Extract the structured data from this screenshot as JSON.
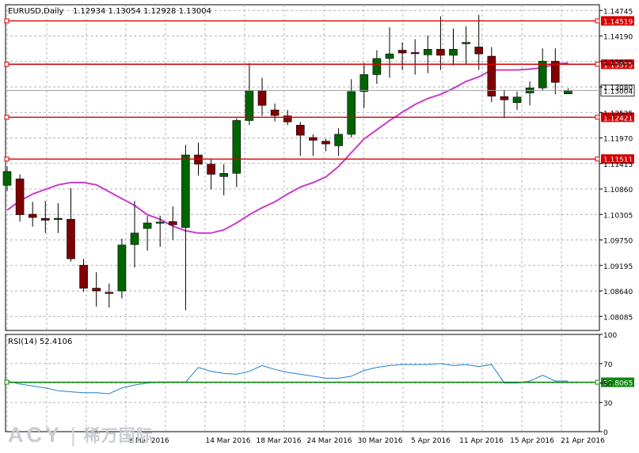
{
  "chart_data": [
    {
      "type": "candlestick",
      "title": "EURUSD,Daily",
      "ohlc_readout": "1.12934 1.13054 1.12928 1.13004",
      "ylim": [
        1.0778,
        1.1487
      ],
      "y_ticks": [
        "1.14745",
        "1.14190",
        "1.13635",
        "1.13080",
        "1.12525",
        "1.11970",
        "1.11415",
        "1.10860",
        "1.10305",
        "1.09750",
        "1.09195",
        "1.08640",
        "1.08085"
      ],
      "x_tick_labels": [
        "8 Mar 2016",
        "14 Mar 2016",
        "18 Mar 2016",
        "24 Mar 2016",
        "30 Mar 2016",
        "5 Apr 2016",
        "11 Apr 2016",
        "15 Apr 2016",
        "21 Apr 2016"
      ],
      "colors": {
        "up": "#006400",
        "down": "#800000",
        "ma": "#c83cc8",
        "levels": "#d40000",
        "grid": "#9a9a9a"
      },
      "candles": [
        {
          "o": 1.1094,
          "h": 1.1135,
          "l": 1.1082,
          "c": 1.1124
        },
        {
          "o": 1.1108,
          "h": 1.1118,
          "l": 1.1015,
          "c": 1.103
        },
        {
          "o": 1.1031,
          "h": 1.1058,
          "l": 1.1004,
          "c": 1.1024
        },
        {
          "o": 1.1022,
          "h": 1.106,
          "l": 1.099,
          "c": 1.1018
        },
        {
          "o": 1.102,
          "h": 1.1055,
          "l": 1.099,
          "c": 1.1022
        },
        {
          "o": 1.102,
          "h": 1.1088,
          "l": 1.0928,
          "c": 1.0934
        },
        {
          "o": 1.092,
          "h": 1.0934,
          "l": 1.0862,
          "c": 1.087
        },
        {
          "o": 1.087,
          "h": 1.0905,
          "l": 1.083,
          "c": 1.0864
        },
        {
          "o": 1.0861,
          "h": 1.088,
          "l": 1.0828,
          "c": 1.0859
        },
        {
          "o": 1.0864,
          "h": 1.0978,
          "l": 1.0848,
          "c": 1.0964
        },
        {
          "o": 1.0965,
          "h": 1.106,
          "l": 1.0915,
          "c": 1.099
        },
        {
          "o": 1.1,
          "h": 1.1027,
          "l": 1.0952,
          "c": 1.1012
        },
        {
          "o": 1.1012,
          "h": 1.1028,
          "l": 1.096,
          "c": 1.1014
        },
        {
          "o": 1.1015,
          "h": 1.1048,
          "l": 1.0975,
          "c": 1.1008
        },
        {
          "o": 1.1002,
          "h": 1.1182,
          "l": 1.0822,
          "c": 1.116
        },
        {
          "o": 1.116,
          "h": 1.1187,
          "l": 1.1115,
          "c": 1.114
        },
        {
          "o": 1.114,
          "h": 1.115,
          "l": 1.1085,
          "c": 1.1118
        },
        {
          "o": 1.1113,
          "h": 1.114,
          "l": 1.1072,
          "c": 1.112
        },
        {
          "o": 1.112,
          "h": 1.124,
          "l": 1.109,
          "c": 1.1235
        },
        {
          "o": 1.1235,
          "h": 1.136,
          "l": 1.1225,
          "c": 1.13
        },
        {
          "o": 1.13,
          "h": 1.1328,
          "l": 1.1245,
          "c": 1.1268
        },
        {
          "o": 1.1258,
          "h": 1.1272,
          "l": 1.1233,
          "c": 1.1246
        },
        {
          "o": 1.1245,
          "h": 1.1258,
          "l": 1.1225,
          "c": 1.1232
        },
        {
          "o": 1.1225,
          "h": 1.1232,
          "l": 1.1158,
          "c": 1.1203
        },
        {
          "o": 1.1198,
          "h": 1.1205,
          "l": 1.1158,
          "c": 1.1192
        },
        {
          "o": 1.119,
          "h": 1.1195,
          "l": 1.1168,
          "c": 1.1184
        },
        {
          "o": 1.118,
          "h": 1.1218,
          "l": 1.1158,
          "c": 1.1205
        },
        {
          "o": 1.1205,
          "h": 1.1325,
          "l": 1.1198,
          "c": 1.1298
        },
        {
          "o": 1.1298,
          "h": 1.136,
          "l": 1.1262,
          "c": 1.1335
        },
        {
          "o": 1.1335,
          "h": 1.1388,
          "l": 1.1315,
          "c": 1.137
        },
        {
          "o": 1.137,
          "h": 1.1438,
          "l": 1.1328,
          "c": 1.138
        },
        {
          "o": 1.1388,
          "h": 1.1405,
          "l": 1.1345,
          "c": 1.1382
        },
        {
          "o": 1.1383,
          "h": 1.1412,
          "l": 1.1335,
          "c": 1.1382
        },
        {
          "o": 1.1378,
          "h": 1.142,
          "l": 1.1338,
          "c": 1.139
        },
        {
          "o": 1.139,
          "h": 1.1462,
          "l": 1.1345,
          "c": 1.1377
        },
        {
          "o": 1.1377,
          "h": 1.1435,
          "l": 1.1355,
          "c": 1.139
        },
        {
          "o": 1.1402,
          "h": 1.144,
          "l": 1.1358,
          "c": 1.1405
        },
        {
          "o": 1.1395,
          "h": 1.1465,
          "l": 1.1345,
          "c": 1.138
        },
        {
          "o": 1.1375,
          "h": 1.1395,
          "l": 1.1275,
          "c": 1.1288
        },
        {
          "o": 1.1287,
          "h": 1.1302,
          "l": 1.124,
          "c": 1.128
        },
        {
          "o": 1.1274,
          "h": 1.1298,
          "l": 1.1258,
          "c": 1.1286
        },
        {
          "o": 1.1295,
          "h": 1.132,
          "l": 1.1268,
          "c": 1.1306
        },
        {
          "o": 1.1306,
          "h": 1.1392,
          "l": 1.13,
          "c": 1.1364
        },
        {
          "o": 1.1364,
          "h": 1.1392,
          "l": 1.1292,
          "c": 1.1318
        },
        {
          "o": 1.1293,
          "h": 1.1305,
          "l": 1.1293,
          "c": 1.13
        }
      ],
      "ma_values": [
        1.104,
        1.106,
        1.1075,
        1.1085,
        1.1095,
        1.11,
        1.11,
        1.1095,
        1.108,
        1.1065,
        1.105,
        1.103,
        1.102,
        1.1005,
        1.0995,
        1.099,
        1.099,
        1.0997,
        1.1012,
        1.103,
        1.1045,
        1.1058,
        1.1075,
        1.109,
        1.11,
        1.1112,
        1.1135,
        1.1165,
        1.1195,
        1.1215,
        1.1235,
        1.1253,
        1.127,
        1.1283,
        1.1292,
        1.1305,
        1.132,
        1.133,
        1.1345,
        1.1345,
        1.1345,
        1.1347,
        1.135,
        1.1358,
        1.136
      ],
      "levels": [
        {
          "value": 1.14519,
          "label": "1.14519"
        },
        {
          "value": 1.13575,
          "label": "1.13575"
        },
        {
          "value": 1.12421,
          "label": "1.12421"
        },
        {
          "value": 1.11511,
          "label": "1.11511"
        }
      ],
      "current_price": {
        "value": 1.13004,
        "label": "1.13004"
      }
    },
    {
      "type": "line",
      "title": "RSI(14) 52.4106",
      "ylim": [
        0,
        100
      ],
      "y_ticks": [
        "100",
        "70",
        "50",
        "30",
        "0"
      ],
      "level": {
        "value": 50.8065,
        "label": "50.8065"
      },
      "values": [
        52,
        49,
        47,
        45,
        42,
        41,
        40,
        40,
        39,
        45,
        48,
        50,
        51,
        51,
        51,
        66,
        62,
        60,
        59,
        62,
        68,
        64,
        61,
        59,
        57,
        55,
        55,
        57,
        63,
        66,
        68,
        69,
        69,
        69,
        70,
        68,
        69,
        67,
        69,
        50,
        50,
        52,
        58,
        52,
        52
      ]
    }
  ],
  "watermark": {
    "logo": "ACY",
    "separator": "|",
    "name": "稀万国际"
  }
}
